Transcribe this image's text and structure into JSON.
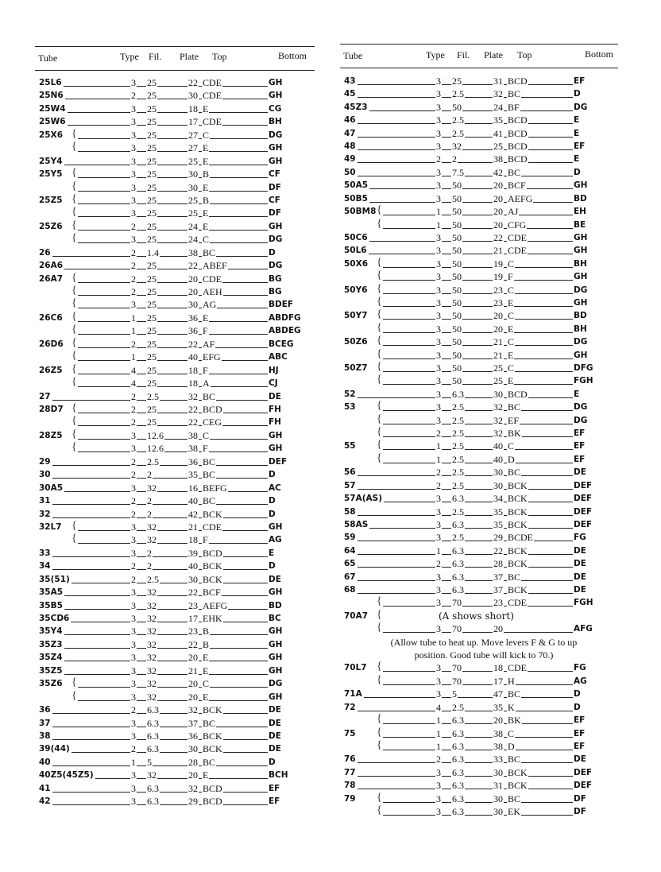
{
  "headers": {
    "tube": "Tube",
    "type": "Type",
    "fil": "Fil.",
    "plate": "Plate",
    "top": "Top",
    "bottom": "Bottom"
  },
  "left_rows": [
    [
      "25L6",
      "3",
      "25",
      "22",
      "CDE",
      "GH",
      0
    ],
    [
      "25N6",
      "2",
      "25",
      "30",
      "CDE",
      "GH",
      0
    ],
    [
      "25W4",
      "3",
      "25",
      "18",
      "E",
      "CG",
      0
    ],
    [
      "25W6",
      "3",
      "25",
      "17",
      "CDE",
      "BH",
      0
    ],
    [
      "25X6",
      "3",
      "25",
      "27",
      "C",
      "DG",
      1
    ],
    [
      "",
      "3",
      "25",
      "27",
      "E",
      "GH",
      1
    ],
    [
      "25Y4",
      "3",
      "25",
      "25",
      "E",
      "GH",
      0
    ],
    [
      "25Y5",
      "3",
      "25",
      "30",
      "B",
      "CF",
      1
    ],
    [
      "",
      "3",
      "25",
      "30",
      "E",
      "DF",
      1
    ],
    [
      "25Z5",
      "3",
      "25",
      "25",
      "B",
      "CF",
      1
    ],
    [
      "",
      "3",
      "25",
      "25",
      "E",
      "DF",
      1
    ],
    [
      "25Z6",
      "2",
      "25",
      "24",
      "E",
      "GH",
      1
    ],
    [
      "",
      "3",
      "25",
      "24",
      "C",
      "DG",
      1
    ],
    [
      "26",
      "2",
      "1.4",
      "38",
      "BC",
      "D",
      0
    ],
    [
      "26A6",
      "2",
      "25",
      "22",
      "ABEF",
      "DG",
      0
    ],
    [
      "26A7",
      "2",
      "25",
      "20",
      "CDE",
      "BG",
      1
    ],
    [
      "",
      "2",
      "25",
      "20",
      "AEH",
      "BG",
      1
    ],
    [
      "",
      "3",
      "25",
      "30",
      "AG",
      "BDEF",
      1
    ],
    [
      "26C6",
      "1",
      "25",
      "36",
      "E",
      "ABDFG",
      1
    ],
    [
      "",
      "1",
      "25",
      "36",
      "F",
      "ABDEG",
      1
    ],
    [
      "26D6",
      "2",
      "25",
      "22",
      "AF",
      "BCEG",
      1
    ],
    [
      "",
      "1",
      "25",
      "40",
      "EFG",
      "ABC",
      1
    ],
    [
      "26Z5",
      "4",
      "25",
      "18",
      "F",
      "HJ",
      1
    ],
    [
      "",
      "4",
      "25",
      "18",
      "A",
      "CJ",
      1
    ],
    [
      "27",
      "2",
      "2.5",
      "32",
      "BC",
      "DE",
      0
    ],
    [
      "28D7",
      "2",
      "25",
      "22",
      "BCD",
      "FH",
      1
    ],
    [
      "",
      "2",
      "25",
      "22",
      "CEG",
      "FH",
      1
    ],
    [
      "28Z5",
      "3",
      "12.6",
      "38",
      "C",
      "GH",
      1
    ],
    [
      "",
      "3",
      "12.6",
      "38",
      "F",
      "GH",
      1
    ],
    [
      "29",
      "2",
      "2.5",
      "36",
      "BC",
      "DEF",
      0
    ],
    [
      "30",
      "2",
      "2",
      "35",
      "BC",
      "D",
      0
    ],
    [
      "30A5",
      "3",
      "32",
      "16",
      "BEFG",
      "AC",
      0
    ],
    [
      "31",
      "2",
      "2",
      "40",
      "BC",
      "D",
      0
    ],
    [
      "32",
      "2",
      "2",
      "42",
      "BCK",
      "D",
      0
    ],
    [
      "32L7",
      "3",
      "32",
      "21",
      "CDE",
      "GH",
      1
    ],
    [
      "",
      "3",
      "32",
      "18",
      "F",
      "AG",
      1
    ],
    [
      "33",
      "3",
      "2",
      "39",
      "BCD",
      "E",
      0
    ],
    [
      "34",
      "2",
      "2",
      "40",
      "BCK",
      "D",
      0
    ],
    [
      "35(51)",
      "2",
      "2.5",
      "30",
      "BCK",
      "DE",
      0
    ],
    [
      "35A5",
      "3",
      "32",
      "22",
      "BCF",
      "GH",
      0
    ],
    [
      "35B5",
      "3",
      "32",
      "23",
      "AEFG",
      "BD",
      0
    ],
    [
      "35CD6",
      "3",
      "32",
      "17",
      "EHK",
      "BC",
      0
    ],
    [
      "35Y4",
      "3",
      "32",
      "23",
      "B",
      "GH",
      0
    ],
    [
      "35Z3",
      "3",
      "32",
      "22",
      "B",
      "GH",
      0
    ],
    [
      "35Z4",
      "3",
      "32",
      "20",
      "E",
      "GH",
      0
    ],
    [
      "35Z5",
      "3",
      "32",
      "21",
      "E",
      "GH",
      0
    ],
    [
      "35Z6",
      "3",
      "32",
      "20",
      "C",
      "DG",
      1
    ],
    [
      "",
      "3",
      "32",
      "20",
      "E",
      "GH",
      1
    ],
    [
      "36",
      "2",
      "6.3",
      "32",
      "BCK",
      "DE",
      0
    ],
    [
      "37",
      "3",
      "6.3",
      "37",
      "BC",
      "DE",
      0
    ],
    [
      "38",
      "3",
      "6.3",
      "36",
      "BCK",
      "DE",
      0
    ],
    [
      "39(44)",
      "2",
      "6.3",
      "30",
      "BCK",
      "DE",
      0
    ],
    [
      "40",
      "1",
      "5",
      "28",
      "BC",
      "D",
      0
    ],
    [
      "40Z5(45Z5)",
      "3",
      "32",
      "20",
      "E",
      "BCH",
      0
    ],
    [
      "41",
      "3",
      "6.3",
      "32",
      "BCD",
      "EF",
      0
    ],
    [
      "42",
      "3",
      "6.3",
      "29",
      "BCD",
      "EF",
      0
    ]
  ],
  "right_rows": [
    [
      "43",
      "3",
      "25",
      "31",
      "BCD",
      "EF",
      0
    ],
    [
      "45",
      "3",
      "2.5",
      "32",
      "BC",
      "D",
      0
    ],
    [
      "45Z3",
      "3",
      "50",
      "24",
      "BF",
      "DG",
      0
    ],
    [
      "46",
      "3",
      "2.5",
      "35",
      "BCD",
      "E",
      0
    ],
    [
      "47",
      "3",
      "2.5",
      "41",
      "BCD",
      "E",
      0
    ],
    [
      "48",
      "3",
      "32",
      "25",
      "BCD",
      "EF",
      0
    ],
    [
      "49",
      "2",
      "2",
      "38",
      "BCD",
      "E",
      0
    ],
    [
      "50",
      "3",
      "7.5",
      "42",
      "BC",
      "D",
      0
    ],
    [
      "50A5",
      "3",
      "50",
      "20",
      "BCF",
      "GH",
      0
    ],
    [
      "50B5",
      "3",
      "50",
      "20",
      "AEFG",
      "BD",
      0
    ],
    [
      "50BM8",
      "1",
      "50",
      "20",
      "AJ",
      "EH",
      1
    ],
    [
      "",
      "1",
      "50",
      "20",
      "CFG",
      "BE",
      1
    ],
    [
      "50C6",
      "3",
      "50",
      "22",
      "CDE",
      "GH",
      0
    ],
    [
      "50L6",
      "3",
      "50",
      "21",
      "CDE",
      "GH",
      0
    ],
    [
      "50X6",
      "3",
      "50",
      "19",
      "C",
      "BH",
      1
    ],
    [
      "",
      "3",
      "50",
      "19",
      "F",
      "GH",
      1
    ],
    [
      "50Y6",
      "3",
      "50",
      "23",
      "C",
      "DG",
      1
    ],
    [
      "",
      "3",
      "50",
      "23",
      "E",
      "GH",
      1
    ],
    [
      "50Y7",
      "3",
      "50",
      "20",
      "C",
      "BD",
      1
    ],
    [
      "",
      "3",
      "50",
      "20",
      "E",
      "BH",
      1
    ],
    [
      "50Z6",
      "3",
      "50",
      "21",
      "C",
      "DG",
      1
    ],
    [
      "",
      "3",
      "50",
      "21",
      "E",
      "GH",
      1
    ],
    [
      "50Z7",
      "3",
      "50",
      "25",
      "C",
      "DFG",
      1
    ],
    [
      "",
      "3",
      "50",
      "25",
      "E",
      "FGH",
      1
    ],
    [
      "52",
      "3",
      "6.3",
      "30",
      "BCD",
      "E",
      0
    ],
    [
      "53",
      "3",
      "2.5",
      "32",
      "BC",
      "DG",
      1
    ],
    [
      "",
      "3",
      "2.5",
      "32",
      "EF",
      "DG",
      1
    ],
    [
      "",
      "2",
      "2.5",
      "32",
      "BK",
      "EF",
      1
    ],
    [
      "55",
      "1",
      "2.5",
      "40",
      "C",
      "EF",
      1
    ],
    [
      "",
      "1",
      "2.5",
      "40",
      "D",
      "EF",
      1
    ],
    [
      "56",
      "2",
      "2.5",
      "30",
      "BC",
      "DE",
      0
    ],
    [
      "57",
      "2",
      "2.5",
      "30",
      "BCK",
      "DEF",
      0
    ],
    [
      "57A(AS)",
      "3",
      "6.3",
      "34",
      "BCK",
      "DEF",
      0
    ],
    [
      "58",
      "3",
      "2.5",
      "35",
      "BCK",
      "DEF",
      0
    ],
    [
      "58AS",
      "3",
      "6.3",
      "35",
      "BCK",
      "DEF",
      0
    ],
    [
      "59",
      "3",
      "2.5",
      "29",
      "BCDE",
      "FG",
      0
    ],
    [
      "64",
      "1",
      "6.3",
      "22",
      "BCK",
      "DE",
      0
    ],
    [
      "65",
      "2",
      "6.3",
      "28",
      "BCK",
      "DE",
      0
    ],
    [
      "67",
      "3",
      "6.3",
      "37",
      "BC",
      "DE",
      0
    ],
    [
      "68",
      "3",
      "6.3",
      "37",
      "BCK",
      "DE",
      0
    ],
    [
      "",
      "3",
      "70",
      "23",
      "CDE",
      "FGH",
      1
    ],
    [
      "70A7",
      "",
      "",
      "",
      "",
      "",
      1,
      "(A shows short)"
    ],
    [
      "",
      "3",
      "70",
      "20",
      "",
      "AFG",
      1
    ],
    "(Allow tube to heat up.  Move levers F & G to up",
    "position.  Good tube will kick to 70.)",
    [
      "70L7",
      "3",
      "70",
      "18",
      "CDE",
      "FG",
      1
    ],
    [
      "",
      "3",
      "70",
      "17",
      "H",
      "AG",
      1
    ],
    [
      "71A",
      "3",
      "5",
      "47",
      "BC",
      "D",
      0
    ],
    [
      "72",
      "4",
      "2.5",
      "35",
      "K",
      "D",
      0
    ],
    [
      "",
      "1",
      "6.3",
      "20",
      "BK",
      "EF",
      1
    ],
    [
      "75",
      "1",
      "6.3",
      "38",
      "C",
      "EF",
      1
    ],
    [
      "",
      "1",
      "6.3",
      "38",
      "D",
      "EF",
      1
    ],
    [
      "76",
      "2",
      "6.3",
      "33",
      "BC",
      "DE",
      0
    ],
    [
      "77",
      "3",
      "6.3",
      "30",
      "BCK",
      "DEF",
      0
    ],
    [
      "78",
      "3",
      "6.3",
      "31",
      "BCK",
      "DEF",
      0
    ],
    [
      "79",
      "3",
      "6.3",
      "30",
      "BC",
      "DF",
      1
    ],
    [
      "",
      "3",
      "6.3",
      "30",
      "EK",
      "DF",
      1
    ]
  ]
}
